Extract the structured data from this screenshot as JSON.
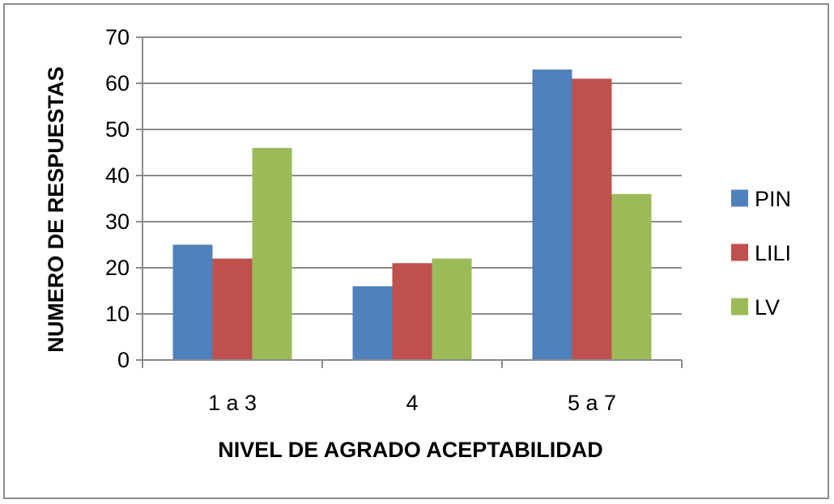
{
  "chart_data": {
    "type": "bar",
    "title": "",
    "xlabel": "NIVEL DE AGRADO ACEPTABILIDAD",
    "ylabel": "NUMERO DE RESPUESTAS",
    "categories": [
      "1 a 3",
      "4",
      "5 a 7"
    ],
    "series": [
      {
        "name": "PIN",
        "values": [
          25,
          16,
          63
        ],
        "color": "#4f81bd"
      },
      {
        "name": "LILI",
        "values": [
          22,
          21,
          61
        ],
        "color": "#c0504d"
      },
      {
        "name": "LV",
        "values": [
          46,
          22,
          36
        ],
        "color": "#9bbb59"
      }
    ],
    "ylim": [
      0,
      70
    ],
    "yticks": [
      0,
      10,
      20,
      30,
      40,
      50,
      60,
      70
    ],
    "grid": true,
    "legend": "right"
  }
}
